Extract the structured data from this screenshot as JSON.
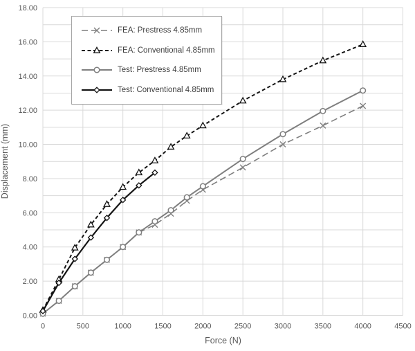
{
  "chart_data": {
    "type": "line",
    "title": "",
    "xlabel": "Force (N)",
    "ylabel": "Displacement (mm)",
    "xlim": [
      0,
      4500
    ],
    "ylim": [
      0,
      18
    ],
    "grid": {
      "on": true,
      "x_step": 500,
      "y_step": 1,
      "color": "#d9d9d9"
    },
    "axis_text_color": "#595959",
    "legend_text_color": "#404040",
    "legend_border_color": "#a6a6a6",
    "legend_position": "inside-top-left",
    "x_ticks": {
      "values": [
        0,
        500,
        1000,
        1500,
        2000,
        2500,
        3000,
        3500,
        4000,
        4500
      ],
      "labels": [
        "0",
        "500",
        "1000",
        "1500",
        "2000",
        "2500",
        "3000",
        "3500",
        "4000",
        "4500"
      ]
    },
    "y_ticks": {
      "values": [
        0,
        2,
        4,
        6,
        8,
        10,
        12,
        14,
        16,
        18
      ],
      "labels": [
        "0.00",
        "2.00",
        "4.00",
        "6.00",
        "8.00",
        "10.00",
        "12.00",
        "14.00",
        "16.00",
        "18.00"
      ]
    },
    "x": [
      0,
      200,
      400,
      600,
      800,
      1000,
      1200,
      1400,
      1600,
      1800,
      2000,
      2500,
      3000,
      3500,
      4000
    ],
    "series": [
      {
        "name": "FEA: Prestress 4.85mm",
        "color": "#7f7f7f",
        "line": "dashed",
        "dash": "9 5",
        "width": 1.6,
        "marker": "x",
        "values": [
          0.1,
          0.85,
          1.7,
          2.5,
          3.25,
          4.0,
          4.85,
          5.3,
          5.95,
          6.7,
          7.35,
          8.65,
          10.0,
          11.1,
          12.25
        ]
      },
      {
        "name": "FEA: Conventional 4.85mm",
        "color": "#141414",
        "line": "dashed",
        "dash": "5 3.5",
        "width": 2,
        "marker": "triangle",
        "values": [
          0.3,
          2.1,
          3.95,
          5.3,
          6.5,
          7.5,
          8.35,
          9.05,
          9.85,
          10.5,
          11.1,
          12.55,
          13.8,
          14.9,
          15.85
        ]
      },
      {
        "name": "Test: Prestress 4.85mm",
        "color": "#7f7f7f",
        "line": "solid",
        "dash": "",
        "width": 2,
        "marker": "circle",
        "values": [
          0.1,
          0.85,
          1.7,
          2.5,
          3.25,
          4.0,
          4.85,
          5.5,
          6.15,
          6.9,
          7.55,
          9.15,
          10.6,
          11.95,
          13.15
        ]
      },
      {
        "name": "Test: Conventional 4.85mm",
        "color": "#141414",
        "line": "solid",
        "dash": "",
        "width": 2.2,
        "marker": "diamond",
        "values": [
          0.25,
          1.9,
          3.3,
          4.55,
          5.7,
          6.75,
          7.6,
          8.35
        ]
      }
    ]
  }
}
